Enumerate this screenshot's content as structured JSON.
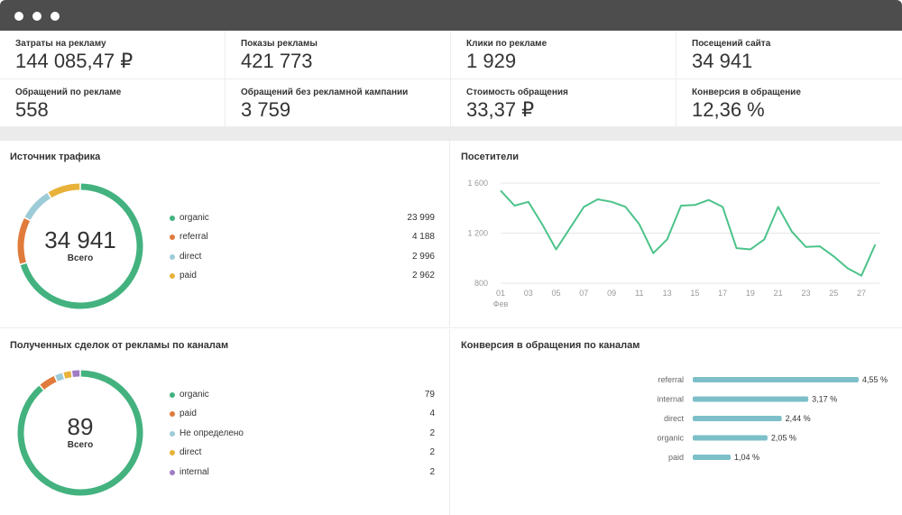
{
  "colors": {
    "green": "#43b27f",
    "orange": "#e07b3c",
    "lightblue": "#9ecbd8",
    "yellow": "#e8b23a",
    "purple": "#a07cc5",
    "line": "#4cc38a",
    "bar": "#7dbfc9"
  },
  "kpis": [
    {
      "label": "Затраты на рекламу",
      "value": "144 085,47 ₽"
    },
    {
      "label": "Показы рекламы",
      "value": "421 773"
    },
    {
      "label": "Клики по рекламе",
      "value": "1 929"
    },
    {
      "label": "Посещений сайта",
      "value": "34 941"
    },
    {
      "label": "Обращений по рекламе",
      "value": "558"
    },
    {
      "label": "Обращений без рекламной кампании",
      "value": "3 759"
    },
    {
      "label": "Стоимость обращения",
      "value": "33,37 ₽"
    },
    {
      "label": "Конверсия в обращение",
      "value": "12,36 %"
    }
  ],
  "traffic": {
    "title": "Источник трафика",
    "total": "34 941",
    "total_label": "Всего",
    "items": [
      {
        "label": "organic",
        "display": "23 999",
        "value": 23999,
        "color": "#43b27f"
      },
      {
        "label": "referral",
        "display": "4 188",
        "value": 4188,
        "color": "#e07b3c"
      },
      {
        "label": "direct",
        "display": "2 996",
        "value": 2996,
        "color": "#9ecbd8"
      },
      {
        "label": "paid",
        "display": "2 962",
        "value": 2962,
        "color": "#e8b23a"
      }
    ]
  },
  "visitors": {
    "title": "Посетители",
    "y_ticks": [
      "1 600",
      "1 200",
      "800"
    ],
    "x_ticks": [
      "01",
      "03",
      "05",
      "07",
      "09",
      "11",
      "13",
      "15",
      "17",
      "19",
      "21",
      "23",
      "25",
      "27"
    ],
    "x_sub": "Фев",
    "chart_data": {
      "type": "line",
      "x": [
        1,
        2,
        3,
        4,
        5,
        6,
        7,
        8,
        9,
        10,
        11,
        12,
        13,
        14,
        15,
        16,
        17,
        18,
        19,
        20,
        21,
        22,
        23,
        24,
        25,
        26,
        27,
        28
      ],
      "values": [
        1540,
        1420,
        1450,
        1270,
        1070,
        1240,
        1410,
        1470,
        1450,
        1410,
        1270,
        1040,
        1150,
        1420,
        1425,
        1465,
        1410,
        1080,
        1070,
        1150,
        1410,
        1210,
        1090,
        1095,
        1015,
        920,
        860,
        1110
      ],
      "ylim": [
        800,
        1600
      ]
    }
  },
  "deals": {
    "title": "Полученных сделок от рекламы по каналам",
    "total": "89",
    "total_label": "Всего",
    "items": [
      {
        "label": "organic",
        "display": "79",
        "value": 79,
        "color": "#43b27f"
      },
      {
        "label": "paid",
        "display": "4",
        "value": 4,
        "color": "#e07b3c"
      },
      {
        "label": "Не определено",
        "display": "2",
        "value": 2,
        "color": "#9ecbd8"
      },
      {
        "label": "direct",
        "display": "2",
        "value": 2,
        "color": "#e8b23a"
      },
      {
        "label": "internal",
        "display": "2",
        "value": 2,
        "color": "#a07cc5"
      }
    ]
  },
  "conversion": {
    "title": "Конверсия в обращения по каналам",
    "chart_data": {
      "type": "bar",
      "categories": [
        "referral",
        "internal",
        "direct",
        "organic",
        "paid"
      ],
      "values": [
        4.55,
        3.17,
        2.44,
        2.05,
        1.04
      ],
      "labels": [
        "4,55 %",
        "3,17 %",
        "2,44 %",
        "2,05 %",
        "1,04 %"
      ],
      "xlim": [
        0,
        4.7
      ]
    }
  }
}
